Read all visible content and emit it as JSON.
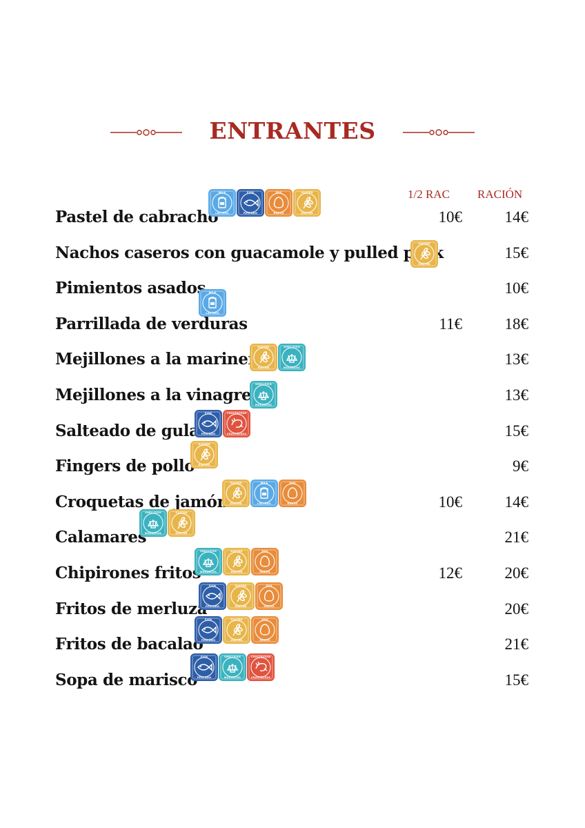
{
  "section_title": "ENTRANTES",
  "columns": {
    "half": "1/2 RAC",
    "full": "RACIÓN"
  },
  "badge_colors": {
    "milk": "#5aa9e6",
    "fish": "#2e5ea8",
    "egg": "#e88c3b",
    "gluten": "#e8b54a",
    "shellfish": "#3bb2bf",
    "crustacean": "#e0533f"
  },
  "allergens": {
    "milk": {
      "en": "MILK",
      "es": "LÁCTEOS",
      "icon": "milk-carton-icon"
    },
    "fish": {
      "en": "FISH",
      "es": "PESCADO",
      "icon": "fish-icon"
    },
    "egg": {
      "en": "EGG",
      "es": "HUEVO",
      "icon": "egg-icon"
    },
    "gluten": {
      "en": "GLUTEN",
      "es": "GLUTEN",
      "icon": "wheat-icon"
    },
    "shellfish": {
      "en": "SHELLFISH",
      "es": "MOLUSCOS",
      "icon": "shell-icon"
    },
    "crustacean": {
      "en": "CRUSTACEAN",
      "es": "CRUSTÁCEOS",
      "icon": "shrimp-icon"
    }
  },
  "items": [
    {
      "name": "Pastel de cabracho",
      "half": "10€",
      "full": "14€",
      "allergens": [
        "milk",
        "fish",
        "egg",
        "gluten"
      ]
    },
    {
      "name": "Nachos caseros con guacamole y pulled pork",
      "half": "",
      "full": "15€",
      "allergens": [
        "gluten"
      ]
    },
    {
      "name": "Pimientos asados",
      "half": "",
      "full": "10€",
      "allergens": [
        "milk"
      ]
    },
    {
      "name": "Parrillada de verduras",
      "half": "11€",
      "full": "18€",
      "allergens": []
    },
    {
      "name": "Mejillones a la marinera",
      "half": "",
      "full": "13€",
      "allergens": [
        "gluten",
        "shellfish"
      ]
    },
    {
      "name": "Mejillones a la vinagreta",
      "half": "",
      "full": "13€",
      "allergens": [
        "shellfish"
      ]
    },
    {
      "name": "Salteado de gulas",
      "half": "",
      "full": "15€",
      "allergens": [
        "fish",
        "crustacean"
      ]
    },
    {
      "name": "Fingers de pollo",
      "half": "",
      "full": "9€",
      "allergens": [
        "gluten"
      ]
    },
    {
      "name": "Croquetas  de jamón",
      "half": "10€",
      "full": "14€",
      "allergens": [
        "gluten",
        "milk",
        "egg"
      ]
    },
    {
      "name": "Calamares",
      "half": "",
      "full": "21€",
      "allergens": [
        "shellfish",
        "gluten"
      ]
    },
    {
      "name": "Chipirones fritos",
      "half": "12€",
      "full": "20€",
      "allergens": [
        "shellfish",
        "gluten",
        "egg"
      ]
    },
    {
      "name": "Fritos de merluza",
      "half": "",
      "full": "20€",
      "allergens": [
        "fish",
        "gluten",
        "egg"
      ]
    },
    {
      "name": "Fritos de bacalao",
      "half": "",
      "full": "21€",
      "allergens": [
        "fish",
        "gluten",
        "egg"
      ]
    },
    {
      "name": "Sopa de marisco",
      "half": "",
      "full": "15€",
      "allergens": [
        "fish",
        "shellfish",
        "crustacean"
      ]
    }
  ]
}
